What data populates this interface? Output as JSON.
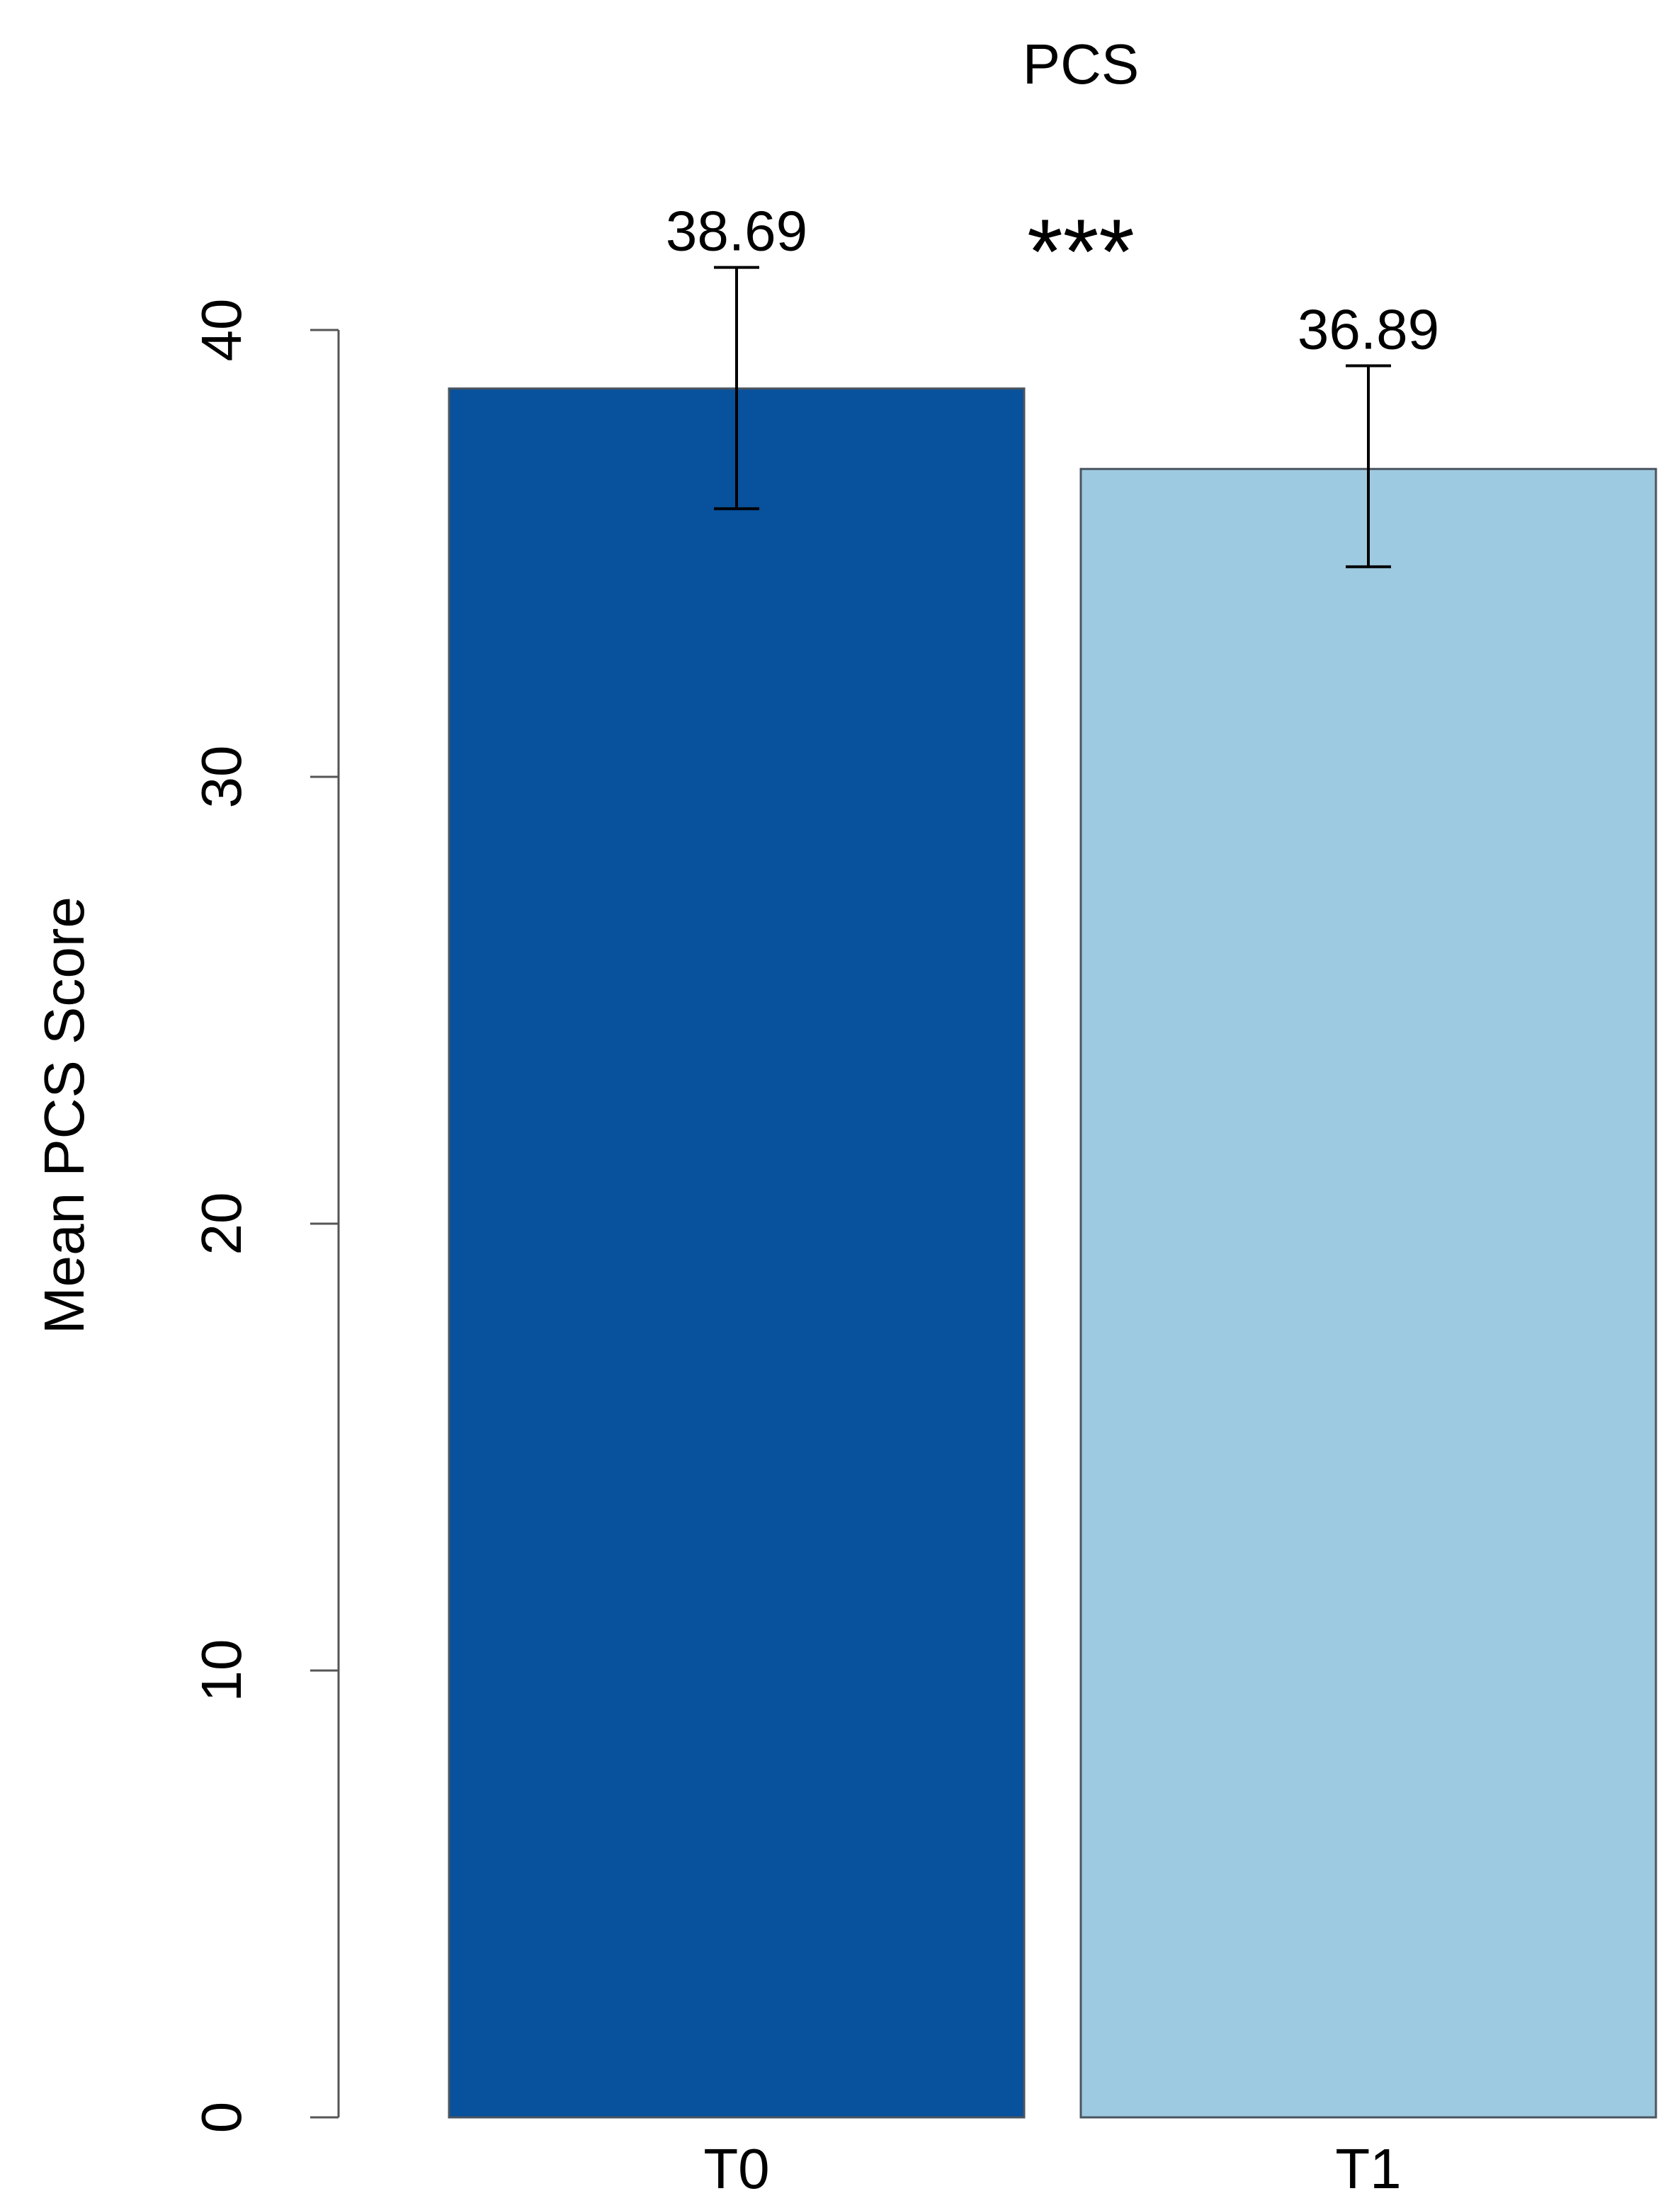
{
  "chart_data": {
    "type": "bar",
    "title": "PCS",
    "xlabel": "",
    "ylabel": "Mean PCS Score",
    "categories": [
      "T0",
      "T1"
    ],
    "values": [
      38.69,
      36.89
    ],
    "value_labels": [
      "38.69",
      "36.89"
    ],
    "error_bars": [
      {
        "low": 36.0,
        "high": 41.4
      },
      {
        "low": 34.7,
        "high": 39.2
      }
    ],
    "bar_colors": [
      "#08519c",
      "#9ecae1"
    ],
    "ylim": [
      0,
      42
    ],
    "yticks": [
      0,
      10,
      20,
      30,
      40
    ],
    "ytick_labels": [
      "0",
      "10",
      "20",
      "30",
      "40"
    ],
    "significance": "***",
    "grid": false,
    "legend": "none"
  }
}
